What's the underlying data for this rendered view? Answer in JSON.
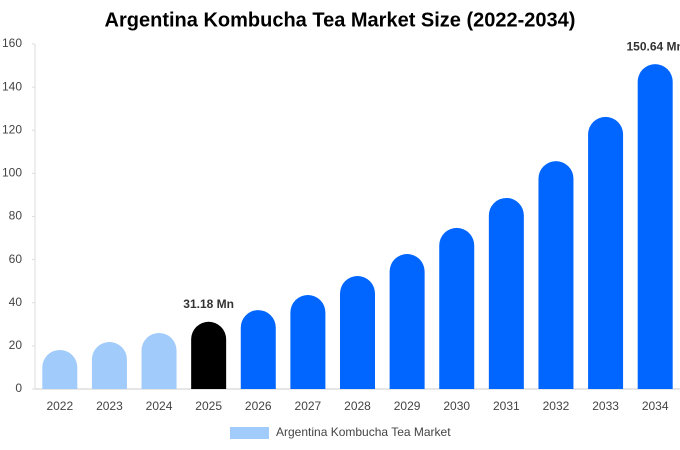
{
  "chart_data": {
    "type": "bar",
    "title": "Argentina Kombucha Tea Market Size (2022-2034)",
    "categories": [
      "2022",
      "2023",
      "2024",
      "2025",
      "2026",
      "2027",
      "2028",
      "2029",
      "2030",
      "2031",
      "2032",
      "2033",
      "2034"
    ],
    "series": [
      {
        "name": "Argentina Kombucha Tea Market",
        "color": "#a0cbfb",
        "values": [
          18.1,
          21.8,
          26,
          31.18,
          36.6,
          43.6,
          52.4,
          62.6,
          74.7,
          88.6,
          105.7,
          126.2,
          150.64
        ],
        "value_labels": [
          null,
          null,
          null,
          "31.18 Mn",
          null,
          null,
          null,
          null,
          null,
          null,
          null,
          null,
          "150.64 Mn"
        ],
        "bar_colors": [
          "#a0cbfb",
          "#a0cbfb",
          "#a0cbfb",
          "#000000",
          "#0066ff",
          "#0066ff",
          "#0066ff",
          "#0066ff",
          "#0066ff",
          "#0066ff",
          "#0066ff",
          "#0066ff",
          "#0066ff"
        ]
      }
    ],
    "ylim": [
      0,
      160
    ],
    "yticks": [
      0,
      20,
      40,
      60,
      80,
      100,
      120,
      140,
      160
    ],
    "grid": false
  }
}
